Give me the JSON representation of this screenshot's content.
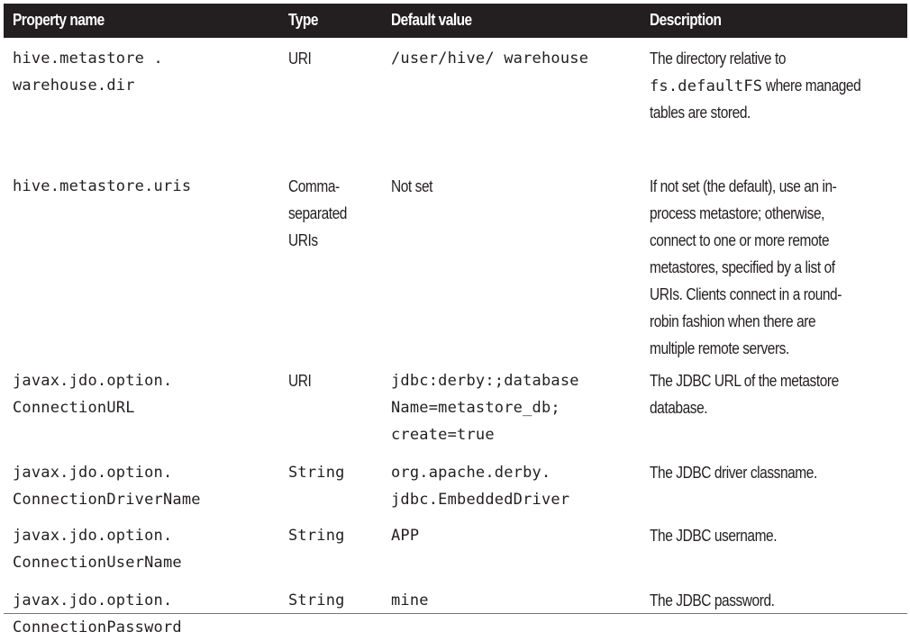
{
  "headers": {
    "property": "Property name",
    "type": "Type",
    "default": "Default value",
    "description": "Description"
  },
  "rows": [
    {
      "property": [
        "hive.metastore .",
        "warehouse.dir"
      ],
      "type": [
        "URI"
      ],
      "type_mono": false,
      "default": [
        "/user/hive/ warehouse"
      ],
      "default_mono": true,
      "description_lines": [
        "The directory relative to",
        "",
        "tables are stored."
      ],
      "description_code": "fs.defaultFS",
      "description_after_code": " where managed"
    },
    {
      "property": [
        "hive.metastore.uris"
      ],
      "type": [
        "Comma-",
        "separated",
        "URIs"
      ],
      "type_mono": false,
      "default": [
        "Not set"
      ],
      "default_mono": false,
      "description_lines": [
        "If not set (the default), use an in-",
        "process metastore; otherwise,",
        "connect to one or more remote",
        "metastores, specified by a list of",
        "URIs. Clients connect in a round-",
        "robin fashion when there are",
        "multiple remote servers."
      ]
    },
    {
      "property": [
        "javax.jdo.option.",
        "ConnectionURL"
      ],
      "type": [
        "URI"
      ],
      "type_mono": false,
      "default": [
        "jdbc:derby:;database",
        "Name=metastore_db;",
        "create=true"
      ],
      "default_mono": true,
      "description_lines": [
        "The JDBC URL of the metastore",
        "database."
      ]
    },
    {
      "property": [
        "javax.jdo.option.",
        "ConnectionDriverName"
      ],
      "type": [
        "String"
      ],
      "type_mono": true,
      "default": [
        "org.apache.derby.",
        "jdbc.EmbeddedDriver"
      ],
      "default_mono": true,
      "description_lines": [
        "The JDBC driver classname."
      ]
    },
    {
      "property": [
        "javax.jdo.option.",
        "ConnectionUserName"
      ],
      "type": [
        "String"
      ],
      "type_mono": true,
      "default": [
        "APP"
      ],
      "default_mono": true,
      "description_lines": [
        "The JDBC username."
      ]
    },
    {
      "property": [
        "javax.jdo.option.",
        "ConnectionPassword"
      ],
      "type": [
        "String"
      ],
      "type_mono": true,
      "default": [
        "mine"
      ],
      "default_mono": true,
      "description_lines": [
        "The JDBC password."
      ]
    }
  ]
}
